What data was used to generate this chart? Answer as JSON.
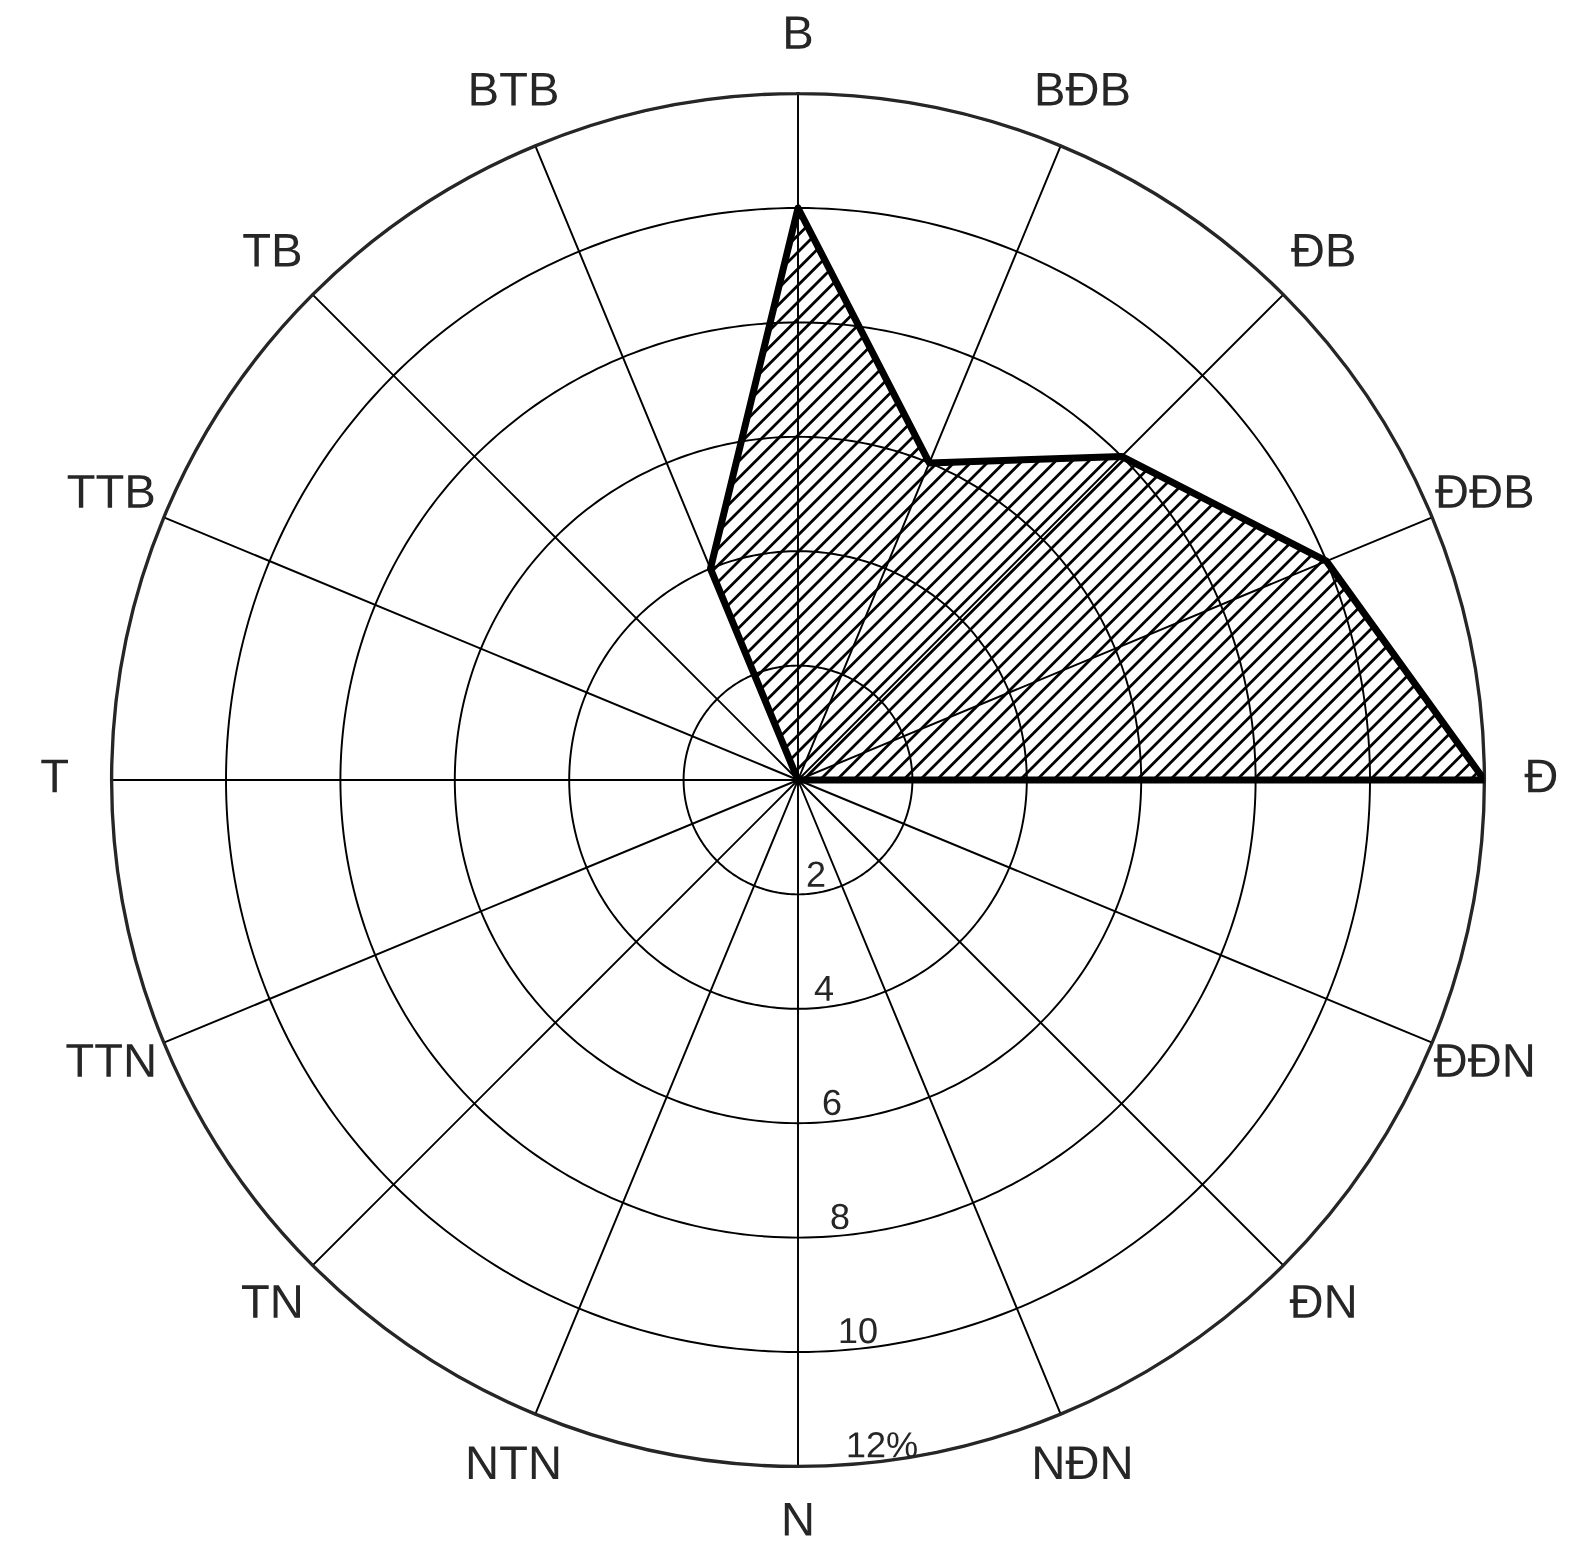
{
  "chart_data": {
    "type": "radar",
    "categories": [
      "B",
      "BĐB",
      "ĐB",
      "ĐĐB",
      "Đ",
      "ĐĐN",
      "ĐN",
      "NĐN",
      "N",
      "NTN",
      "TN",
      "TTN",
      "T",
      "TTB",
      "TB",
      "BTB"
    ],
    "series": [
      {
        "color": "#000000",
        "values": [
          10,
          6,
          8,
          10,
          12,
          0,
          0,
          0,
          0,
          0,
          0,
          0,
          0,
          0,
          0,
          4
        ]
      }
    ],
    "ylim": [
      0,
      12
    ],
    "yticks": [
      2,
      4,
      6,
      8,
      10,
      {
        "value": 12,
        "label": "12%"
      }
    ],
    "grid": true
  }
}
